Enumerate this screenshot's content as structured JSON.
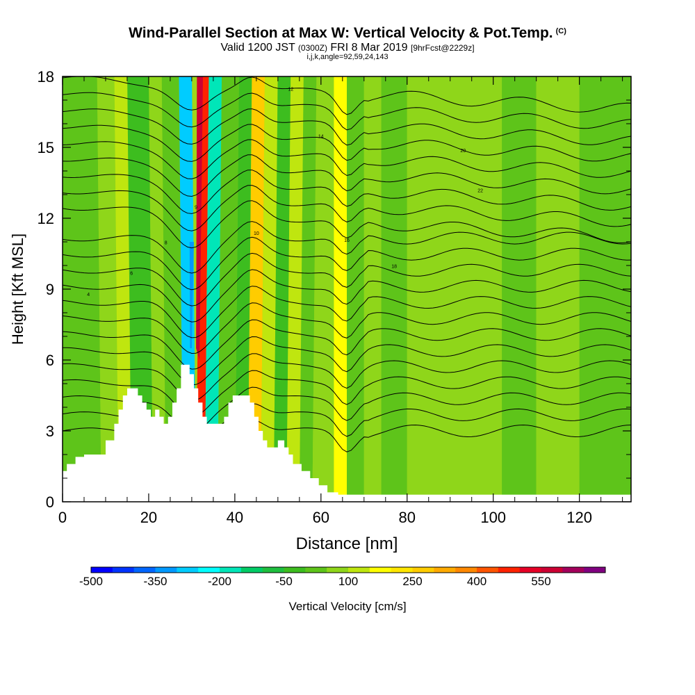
{
  "chart_data": {
    "type": "heatmap",
    "title": "Wind-Parallel Section at Max W: Vertical Velocity & Pot.Temp.",
    "title_mark": "(C)",
    "subtitle_parts": [
      "Valid 1200 JST ",
      "(0300Z)",
      " FRI 8 Mar 2019 ",
      "[9hrFcst@2229z]"
    ],
    "subtitle2": "i,j,k,angle=92,59,24,143",
    "xlabel": "Distance [nm]",
    "ylabel": "Height [Kft MSL]",
    "xlim": [
      0,
      132
    ],
    "ylim": [
      0,
      18
    ],
    "x_ticks": [
      "0",
      "20",
      "40",
      "60",
      "80",
      "100",
      "120"
    ],
    "y_ticks": [
      "0",
      "3",
      "6",
      "9",
      "12",
      "15",
      "18"
    ],
    "colorbar": {
      "title": "Vertical Velocity [cm/s]",
      "labels": [
        "-500",
        "-350",
        "-200",
        "-50",
        "100",
        "250",
        "400",
        "550"
      ],
      "colors": [
        "#0000ff",
        "#0033ff",
        "#0066ff",
        "#0099ff",
        "#00ccff",
        "#00ffff",
        "#00e6b8",
        "#00cc66",
        "#1fbf3f",
        "#3dbd1f",
        "#5ec41a",
        "#8fd61a",
        "#bfe60f",
        "#ffff00",
        "#ffe600",
        "#ffcc00",
        "#ffaa00",
        "#ff8800",
        "#ff5500",
        "#ff2200",
        "#e60026",
        "#cc0033",
        "#a3005c",
        "#800080"
      ]
    },
    "terrain_kft": [
      [
        0,
        1.3
      ],
      [
        1,
        1.3
      ],
      [
        1,
        1.6
      ],
      [
        3,
        1.6
      ],
      [
        3,
        1.9
      ],
      [
        5,
        1.9
      ],
      [
        5,
        2.0
      ],
      [
        10,
        2.0
      ],
      [
        10,
        2.6
      ],
      [
        12,
        2.6
      ],
      [
        12,
        3.3
      ],
      [
        13,
        3.3
      ],
      [
        13,
        3.9
      ],
      [
        14,
        3.9
      ],
      [
        14,
        4.5
      ],
      [
        15,
        4.5
      ],
      [
        15,
        4.8
      ],
      [
        17.5,
        4.8
      ],
      [
        17.5,
        4.5
      ],
      [
        18.5,
        4.5
      ],
      [
        18.5,
        4.2
      ],
      [
        19.5,
        4.2
      ],
      [
        19.5,
        3.9
      ],
      [
        20.5,
        3.9
      ],
      [
        20.5,
        3.6
      ],
      [
        21.5,
        3.6
      ],
      [
        21.5,
        3.9
      ],
      [
        22.5,
        3.9
      ],
      [
        22.5,
        3.6
      ],
      [
        23.5,
        3.6
      ],
      [
        23.5,
        3.3
      ],
      [
        24.5,
        3.3
      ],
      [
        24.5,
        3.6
      ],
      [
        25.5,
        3.6
      ],
      [
        25.5,
        4.2
      ],
      [
        26.5,
        4.2
      ],
      [
        26.5,
        4.8
      ],
      [
        27.5,
        4.8
      ],
      [
        27.5,
        5.8
      ],
      [
        29.5,
        5.8
      ],
      [
        29.5,
        5.4
      ],
      [
        30.5,
        5.4
      ],
      [
        30.5,
        4.8
      ],
      [
        31.5,
        4.8
      ],
      [
        31.5,
        4.2
      ],
      [
        32.5,
        4.2
      ],
      [
        32.5,
        3.6
      ],
      [
        33.5,
        3.6
      ],
      [
        33.5,
        3.3
      ],
      [
        37.5,
        3.3
      ],
      [
        37.5,
        3.6
      ],
      [
        38.5,
        3.6
      ],
      [
        38.5,
        4.2
      ],
      [
        39.5,
        4.2
      ],
      [
        39.5,
        4.5
      ],
      [
        43.5,
        4.5
      ],
      [
        43.5,
        4.2
      ],
      [
        44.5,
        4.2
      ],
      [
        44.5,
        3.6
      ],
      [
        45.5,
        3.6
      ],
      [
        45.5,
        3.0
      ],
      [
        46.5,
        3.0
      ],
      [
        46.5,
        2.6
      ],
      [
        47.5,
        2.6
      ],
      [
        47.5,
        2.3
      ],
      [
        50,
        2.3
      ],
      [
        50,
        2.6
      ],
      [
        51.5,
        2.6
      ],
      [
        51.5,
        2.3
      ],
      [
        52.5,
        2.3
      ],
      [
        52.5,
        2.0
      ],
      [
        53.5,
        2.0
      ],
      [
        53.5,
        1.6
      ],
      [
        55.5,
        1.6
      ],
      [
        55.5,
        1.3
      ],
      [
        57.5,
        1.3
      ],
      [
        57.5,
        1.0
      ],
      [
        59.5,
        1.0
      ],
      [
        59.5,
        0.7
      ],
      [
        61.5,
        0.7
      ],
      [
        61.5,
        0.4
      ],
      [
        64,
        0.4
      ],
      [
        64,
        0.3
      ],
      [
        132,
        0.3
      ]
    ],
    "velocity_bands": [
      {
        "x0": 0,
        "x1": 9,
        "v": 20
      },
      {
        "x0": 9,
        "x1": 13,
        "v": 60
      },
      {
        "x0": 13,
        "x1": 16,
        "v": 100
      },
      {
        "x0": 16,
        "x1": 21,
        "v": -20
      },
      {
        "x0": 21,
        "x1": 24,
        "v": 60
      },
      {
        "x0": 24,
        "x1": 28,
        "v": 10
      },
      {
        "x0": 28,
        "x1": 31,
        "v": -300
      },
      {
        "x0": 31,
        "x1": 33,
        "v": 450
      },
      {
        "x0": 33,
        "x1": 36,
        "v": -200
      },
      {
        "x0": 36,
        "x1": 40,
        "v": 10
      },
      {
        "x0": 40,
        "x1": 43,
        "v": -50
      },
      {
        "x0": 43,
        "x1": 46,
        "v": 250
      },
      {
        "x0": 46,
        "x1": 49,
        "v": 110
      },
      {
        "x0": 49,
        "x1": 52,
        "v": -30
      },
      {
        "x0": 52,
        "x1": 55,
        "v": 100
      },
      {
        "x0": 55,
        "x1": 58,
        "v": 30
      },
      {
        "x0": 58,
        "x1": 63,
        "v": 60
      },
      {
        "x0": 63,
        "x1": 66,
        "v": 180
      },
      {
        "x0": 66,
        "x1": 70,
        "v": 20
      },
      {
        "x0": 70,
        "x1": 74,
        "v": 70
      },
      {
        "x0": 74,
        "x1": 80,
        "v": 40
      },
      {
        "x0": 80,
        "x1": 92,
        "v": 60
      },
      {
        "x0": 92,
        "x1": 102,
        "v": 70
      },
      {
        "x0": 102,
        "x1": 110,
        "v": 40
      },
      {
        "x0": 110,
        "x1": 120,
        "v": 60
      },
      {
        "x0": 120,
        "x1": 132,
        "v": 20
      }
    ],
    "isentrope_labels": [
      "4",
      "6",
      "8",
      "9",
      "10",
      "12",
      "14",
      "16",
      "18",
      "20",
      "22"
    ]
  }
}
